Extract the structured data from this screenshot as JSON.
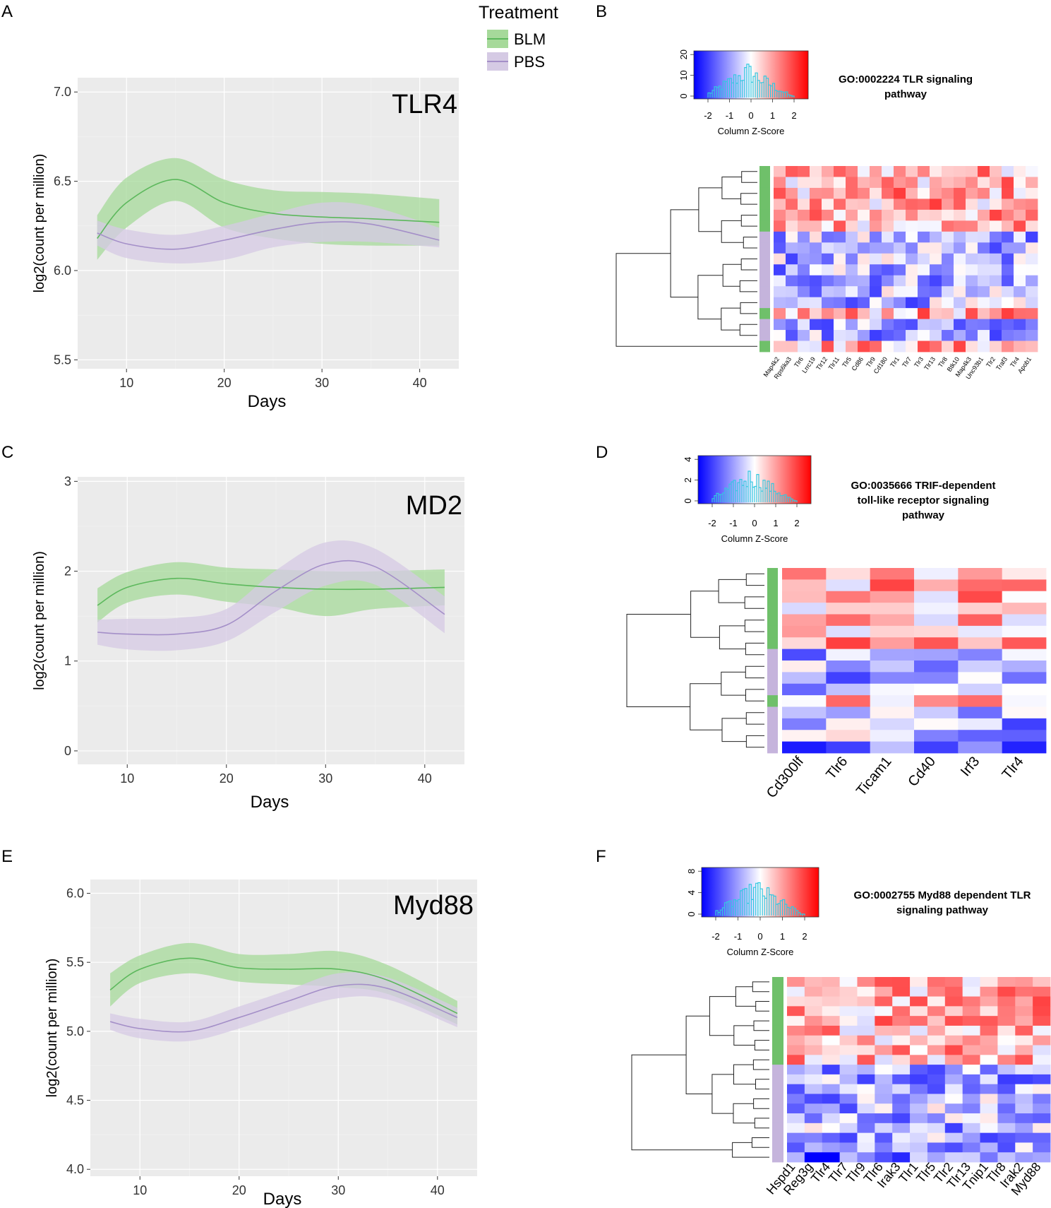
{
  "legend": {
    "title": "Treatment",
    "items": [
      {
        "label": "BLM",
        "color": "#5cb85c",
        "fill": "#a6d99a"
      },
      {
        "label": "PBS",
        "color": "#a48fc8",
        "fill": "#d5cae4"
      }
    ]
  },
  "chart_data": [
    {
      "panel": "A",
      "type": "line",
      "title": "TLR4",
      "xlabel": "Days",
      "ylabel": "log2(count per million)",
      "xlim": [
        5,
        44
      ],
      "ylim": [
        5.45,
        7.08
      ],
      "xticks": [
        10,
        20,
        30,
        40
      ],
      "yticks": [
        5.5,
        6.0,
        6.5,
        7.0
      ],
      "ytick_labels": [
        "5.5",
        "6.0",
        "6.5",
        "7.0"
      ],
      "series": [
        {
          "name": "BLM",
          "x": [
            7,
            10,
            15,
            20,
            25,
            30,
            35,
            42
          ],
          "y": [
            6.18,
            6.38,
            6.51,
            6.38,
            6.32,
            6.3,
            6.29,
            6.27
          ],
          "lo": [
            6.06,
            6.24,
            6.39,
            6.24,
            6.18,
            6.15,
            6.14,
            6.14
          ],
          "hi": [
            6.31,
            6.52,
            6.63,
            6.51,
            6.45,
            6.44,
            6.43,
            6.4
          ]
        },
        {
          "name": "PBS",
          "x": [
            7,
            10,
            15,
            20,
            25,
            30,
            35,
            42
          ],
          "y": [
            6.21,
            6.15,
            6.12,
            6.17,
            6.23,
            6.27,
            6.26,
            6.17
          ],
          "lo": [
            6.14,
            6.07,
            6.04,
            6.06,
            6.13,
            6.16,
            6.16,
            6.13
          ],
          "hi": [
            6.28,
            6.23,
            6.2,
            6.25,
            6.32,
            6.38,
            6.36,
            6.24
          ]
        }
      ]
    },
    {
      "panel": "C",
      "type": "line",
      "title": "MD2",
      "xlabel": "Days",
      "ylabel": "log2(count per million)",
      "xlim": [
        5,
        44
      ],
      "ylim": [
        -0.15,
        3.05
      ],
      "xticks": [
        10,
        20,
        30,
        40
      ],
      "yticks": [
        0,
        1,
        2,
        3
      ],
      "ytick_labels": [
        "0",
        "1",
        "2",
        "3"
      ],
      "series": [
        {
          "name": "BLM",
          "x": [
            7,
            10,
            15,
            20,
            25,
            30,
            35,
            42
          ],
          "y": [
            1.62,
            1.82,
            1.92,
            1.86,
            1.82,
            1.8,
            1.8,
            1.82
          ],
          "lo": [
            1.43,
            1.65,
            1.74,
            1.66,
            1.6,
            1.5,
            1.58,
            1.62
          ],
          "hi": [
            1.81,
            1.99,
            2.1,
            2.04,
            2.02,
            2.0,
            2.0,
            2.02
          ]
        },
        {
          "name": "PBS",
          "x": [
            7,
            10,
            15,
            20,
            25,
            30,
            35,
            42
          ],
          "y": [
            1.32,
            1.3,
            1.3,
            1.4,
            1.78,
            2.08,
            2.05,
            1.52
          ],
          "lo": [
            1.18,
            1.13,
            1.12,
            1.22,
            1.55,
            1.84,
            1.85,
            1.31
          ],
          "hi": [
            1.46,
            1.47,
            1.48,
            1.58,
            2.01,
            2.32,
            2.25,
            1.72
          ]
        }
      ]
    },
    {
      "panel": "E",
      "type": "line",
      "title": "Myd88",
      "xlabel": "Days",
      "ylabel": "log2(count per million)",
      "xlim": [
        5,
        44
      ],
      "ylim": [
        3.95,
        6.1
      ],
      "xticks": [
        10,
        20,
        30,
        40
      ],
      "yticks": [
        4.0,
        4.5,
        5.0,
        5.5,
        6.0
      ],
      "ytick_labels": [
        "4.0",
        "4.5",
        "5.0",
        "5.5",
        "6.0"
      ],
      "series": [
        {
          "name": "BLM",
          "x": [
            7,
            10,
            15,
            20,
            25,
            30,
            35,
            42
          ],
          "y": [
            5.3,
            5.45,
            5.53,
            5.46,
            5.45,
            5.45,
            5.37,
            5.13
          ],
          "lo": [
            5.18,
            5.35,
            5.42,
            5.36,
            5.34,
            5.32,
            5.27,
            5.05
          ],
          "hi": [
            5.42,
            5.55,
            5.64,
            5.56,
            5.56,
            5.58,
            5.48,
            5.22
          ]
        },
        {
          "name": "PBS",
          "x": [
            7,
            10,
            15,
            20,
            25,
            30,
            35,
            42
          ],
          "y": [
            5.07,
            5.02,
            5.0,
            5.1,
            5.22,
            5.33,
            5.31,
            5.1
          ],
          "lo": [
            5.01,
            4.95,
            4.93,
            5.02,
            5.14,
            5.24,
            5.23,
            5.03
          ],
          "hi": [
            5.13,
            5.09,
            5.07,
            5.18,
            5.3,
            5.42,
            5.39,
            5.17
          ]
        }
      ]
    },
    {
      "panel": "B",
      "type": "heatmap",
      "title": "GO:0002224 TLR signaling pathway",
      "key_title": "Column Z-Score",
      "key_xticks": [
        "-2",
        "-1",
        "0",
        "1",
        "2"
      ],
      "key_yticks": [
        "0",
        "10",
        "20"
      ],
      "columns": [
        "Map4k2",
        "Rps6ka3",
        "Tlr6",
        "Lrrc19",
        "Tlr12",
        "Tlr11",
        "Tlr5",
        "Cd86",
        "Tlr9",
        "Cd180",
        "Tlr1",
        "Tlr7",
        "Tlr3",
        "Tlr13",
        "Tlr8",
        "Btk10",
        "Map4k3",
        "Unc93b1",
        "Tlr2",
        "Traf3",
        "Tlr4",
        "Apob1"
      ],
      "row_groups": [
        "BLM",
        "BLM",
        "BLM",
        "BLM",
        "BLM",
        "BLM",
        "PBS",
        "PBS",
        "PBS",
        "PBS",
        "PBS",
        "PBS",
        "PBS",
        "BLM",
        "PBS",
        "PBS",
        "BLM"
      ]
    },
    {
      "panel": "D",
      "type": "heatmap",
      "title": "GO:0035666 TRIF-dependent toll-like receptor signaling pathway",
      "key_title": "Column Z-Score",
      "key_xticks": [
        "-2",
        "-1",
        "0",
        "1",
        "2"
      ],
      "key_yticks": [
        "0",
        "2",
        "4"
      ],
      "columns": [
        "Cd300lf",
        "Tlr6",
        "Ticam1",
        "Cd40",
        "Irf3",
        "Tlr4"
      ],
      "row_groups": [
        "BLM",
        "BLM",
        "BLM",
        "BLM",
        "BLM",
        "BLM",
        "BLM",
        "PBS",
        "PBS",
        "PBS",
        "PBS",
        "BLM",
        "PBS",
        "PBS",
        "PBS",
        "PBS"
      ]
    },
    {
      "panel": "F",
      "type": "heatmap",
      "title": "GO:0002755 Myd88 dependent TLR signaling pathway",
      "key_title": "Column Z-Score",
      "key_xticks": [
        "-2",
        "-1",
        "0",
        "1",
        "2"
      ],
      "key_yticks": [
        "0",
        "4",
        "8"
      ],
      "columns": [
        "Hspd1",
        "Reg3g",
        "Tlr4",
        "Tlr7",
        "Tlr9",
        "Tlr6",
        "Irak3",
        "Tlr1",
        "Tlr5",
        "Tlr2",
        "Tlr13",
        "Tnip1",
        "Tlr8",
        "Irak2",
        "Myd88"
      ],
      "row_groups": [
        "BLM",
        "BLM",
        "BLM",
        "BLM",
        "BLM",
        "BLM",
        "BLM",
        "BLM",
        "BLM",
        "PBS",
        "PBS",
        "PBS",
        "PBS",
        "PBS",
        "PBS",
        "PBS",
        "PBS",
        "PBS",
        "PBS"
      ]
    }
  ]
}
